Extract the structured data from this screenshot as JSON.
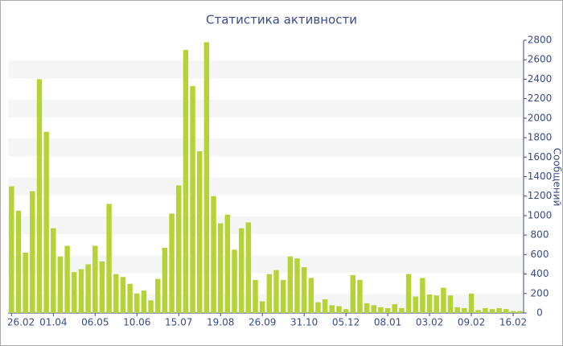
{
  "chart_data": {
    "type": "bar",
    "title": "Статистика активности",
    "y_label": "Сообщений",
    "categories": [
      "26.02",
      null,
      null,
      null,
      null,
      null,
      "01.04",
      null,
      null,
      null,
      null,
      null,
      "06.05",
      null,
      null,
      null,
      null,
      null,
      "10.06",
      null,
      null,
      null,
      null,
      null,
      "15.07",
      null,
      null,
      null,
      null,
      null,
      "19.08",
      null,
      null,
      null,
      null,
      null,
      "26.09",
      null,
      null,
      null,
      null,
      null,
      "31.10",
      null,
      null,
      null,
      null,
      null,
      "05.12",
      null,
      null,
      null,
      null,
      null,
      "08.01",
      null,
      null,
      null,
      null,
      null,
      "03.02",
      null,
      null,
      null,
      null,
      null,
      "09.02",
      null,
      null,
      null,
      null,
      null,
      "16.02",
      null
    ],
    "values": [
      1300,
      1050,
      620,
      1250,
      2400,
      1860,
      870,
      580,
      690,
      420,
      450,
      500,
      690,
      530,
      1120,
      400,
      370,
      300,
      200,
      230,
      130,
      350,
      670,
      1020,
      1310,
      2700,
      2330,
      1660,
      2780,
      1200,
      920,
      1010,
      650,
      870,
      930,
      340,
      120,
      400,
      440,
      340,
      580,
      560,
      470,
      360,
      110,
      140,
      80,
      70,
      40,
      390,
      340,
      100,
      80,
      60,
      50,
      90,
      50,
      400,
      170,
      360,
      190,
      180,
      260,
      180,
      60,
      50,
      200,
      30,
      50,
      40,
      50,
      40,
      20,
      20
    ],
    "color": "#b5d334",
    "ylim": [
      0,
      2800
    ],
    "yticks": [
      0,
      200,
      400,
      600,
      800,
      1000,
      1200,
      1400,
      1600,
      1800,
      2000,
      2200,
      2400,
      2600,
      2800
    ],
    "grid": "bands",
    "y_axis_side": "right"
  }
}
